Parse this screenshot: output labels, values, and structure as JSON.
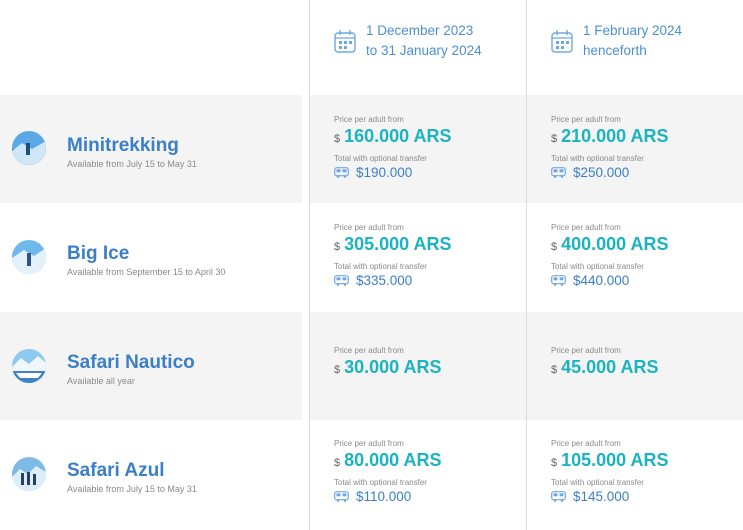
{
  "periods": [
    {
      "line1": "1 December 2023",
      "line2": "to 31 January 2024"
    },
    {
      "line1": "1 February 2024",
      "line2": "henceforth"
    }
  ],
  "labels": {
    "price_per_adult": "Price per adult from",
    "total_transfer": "Total with optional transfer",
    "currency_symbol": "$"
  },
  "tours": [
    {
      "name": "Minitrekking",
      "availability": "Available from July 15 to May 31",
      "prices": [
        {
          "price": "160.000 ARS",
          "total": "$190.000"
        },
        {
          "price": "210.000 ARS",
          "total": "$250.000"
        }
      ]
    },
    {
      "name": "Big Ice",
      "availability": "Available from September 15 to April 30",
      "prices": [
        {
          "price": "305.000 ARS",
          "total": "$335.000"
        },
        {
          "price": "400.000 ARS",
          "total": "$440.000"
        }
      ]
    },
    {
      "name": "Safari Nautico",
      "availability": "Available all year",
      "prices": [
        {
          "price": "30.000 ARS"
        },
        {
          "price": "45.000 ARS"
        }
      ]
    },
    {
      "name": "Safari Azul",
      "availability": "Available from July 15 to May 31",
      "prices": [
        {
          "price": "80.000 ARS",
          "total": "$110.000"
        },
        {
          "price": "105.000 ARS",
          "total": "$145.000"
        }
      ]
    }
  ],
  "colors": {
    "accent_blue": "#3a7fc8",
    "price_teal": "#1ab3c1",
    "row_shade": "#f4f4f4"
  },
  "icons": {
    "period": "calendar-icon",
    "transfer": "bus-icon"
  }
}
